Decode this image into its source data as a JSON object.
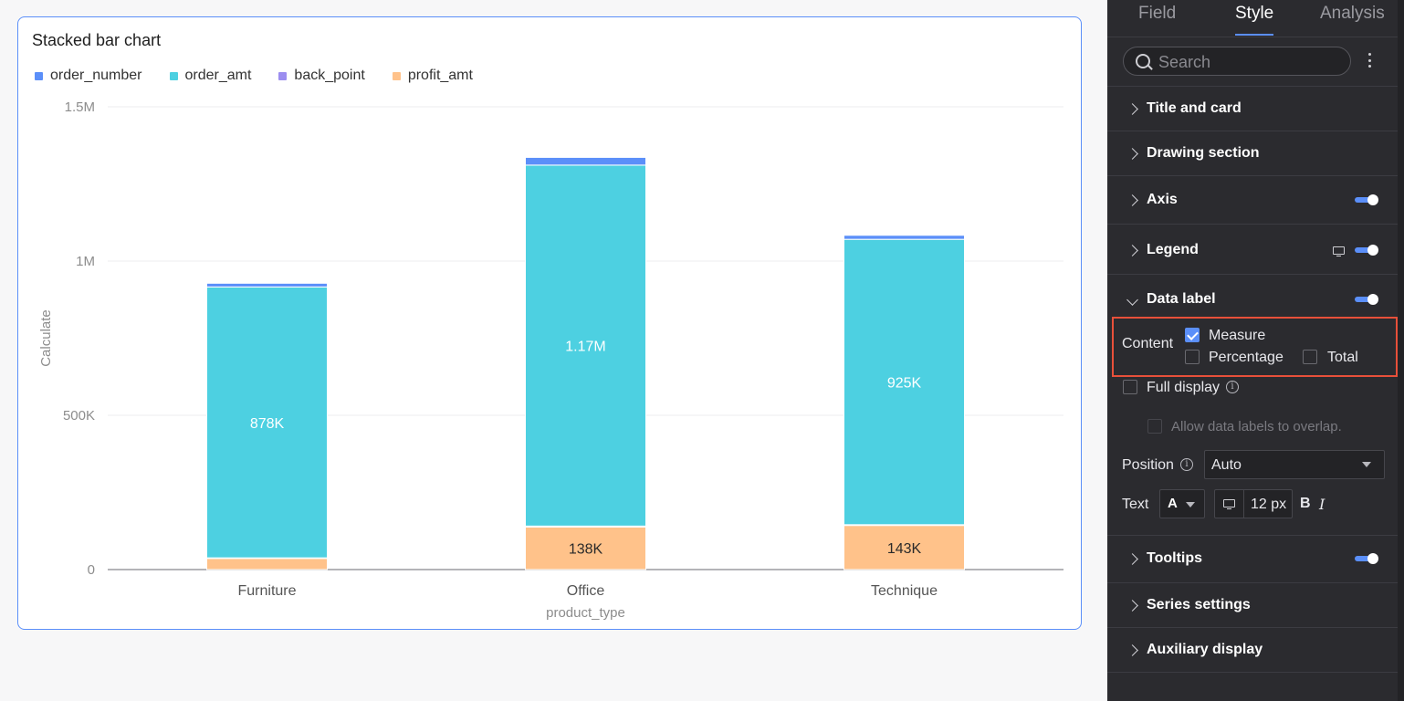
{
  "chart": {
    "title": "Stacked bar chart",
    "legend": [
      {
        "label": "order_number",
        "color": "#5b8ff9"
      },
      {
        "label": "order_amt",
        "color": "#4dd0e1"
      },
      {
        "label": "back_point",
        "color": "#9c8ef0"
      },
      {
        "label": "profit_amt",
        "color": "#ffc28a"
      }
    ]
  },
  "chart_data": {
    "type": "bar",
    "stacked": true,
    "title": "Stacked bar chart",
    "xlabel": "product_type",
    "ylabel": "Calculate",
    "categories": [
      "Furniture",
      "Office",
      "Technique"
    ],
    "ylim": [
      0,
      1500000
    ],
    "yticks": [
      0,
      500000,
      1000000,
      1500000
    ],
    "ytick_labels": [
      "0",
      "500K",
      "1M",
      "1.5M"
    ],
    "grid": true,
    "legend_position": "top-left",
    "series": [
      {
        "name": "profit_amt",
        "color": "#ffc28a",
        "values": [
          36000,
          138000,
          143000
        ],
        "labels": [
          "",
          "138K",
          "143K"
        ]
      },
      {
        "name": "back_point",
        "color": "#9c8ef0",
        "values": [
          2000,
          3000,
          2500
        ],
        "labels": [
          "",
          "",
          ""
        ]
      },
      {
        "name": "order_amt",
        "color": "#4dd0e1",
        "values": [
          878000,
          1170000,
          925000
        ],
        "labels": [
          "878K",
          "1.17M",
          "925K"
        ]
      },
      {
        "name": "order_number",
        "color": "#5b8ff9",
        "values": [
          12000,
          25000,
          13000
        ],
        "labels": [
          "",
          "",
          ""
        ]
      }
    ]
  },
  "panel": {
    "tabs": [
      "Field",
      "Style",
      "Analysis"
    ],
    "active_tab": "Style",
    "search_placeholder": "Search",
    "sections": {
      "title_card": "Title and card",
      "drawing": "Drawing section",
      "axis": "Axis",
      "legend": "Legend",
      "data_label": "Data label",
      "tooltips": "Tooltips",
      "series": "Series settings",
      "auxiliary": "Auxiliary display"
    },
    "data_label": {
      "content_label": "Content",
      "measure": "Measure",
      "percentage": "Percentage",
      "total": "Total",
      "full_display": "Full display",
      "allow_overlap": "Allow data labels to overlap.",
      "position_label": "Position",
      "position_value": "Auto",
      "text_label": "Text",
      "font_letter": "A",
      "font_size": "12 px",
      "bold": "B",
      "italic": "I"
    }
  }
}
